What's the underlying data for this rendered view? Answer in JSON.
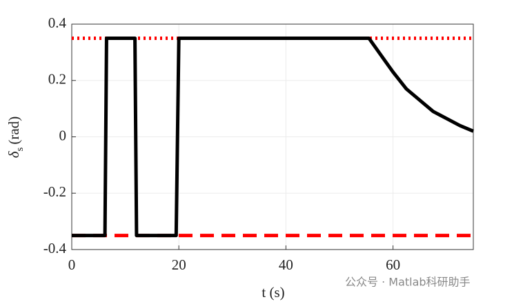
{
  "chart_data": {
    "type": "line",
    "xlabel": "t (s)",
    "ylabel": "δ",
    "ylabel_sub": "s",
    "ylabel_unit": "(rad)",
    "xlim": [
      0,
      75
    ],
    "ylim": [
      -0.4,
      0.4
    ],
    "xticks": [
      0,
      20,
      40,
      60
    ],
    "yticks": [
      -0.4,
      -0.2,
      0,
      0.2,
      0.4
    ],
    "grid": true,
    "series": [
      {
        "color": "#ff0000",
        "style": "dotted",
        "x": [
          0,
          75
        ],
        "values": [
          0.35,
          0.35
        ]
      },
      {
        "color": "#ff0000",
        "style": "dashed",
        "x": [
          0,
          75
        ],
        "values": [
          -0.35,
          -0.35
        ]
      },
      {
        "color": "#000000",
        "style": "solid",
        "x": [
          0,
          6.2,
          6.5,
          11.8,
          12.1,
          19.5,
          20,
          55.5,
          57,
          58.5,
          60,
          62.5,
          65,
          67.5,
          70,
          72.5,
          75
        ],
        "values": [
          -0.35,
          -0.35,
          0.35,
          0.35,
          -0.35,
          -0.35,
          0.35,
          0.35,
          0.31,
          0.27,
          0.23,
          0.17,
          0.13,
          0.09,
          0.065,
          0.04,
          0.02
        ]
      }
    ],
    "watermark": "公众号 · Matlab科研助手"
  }
}
